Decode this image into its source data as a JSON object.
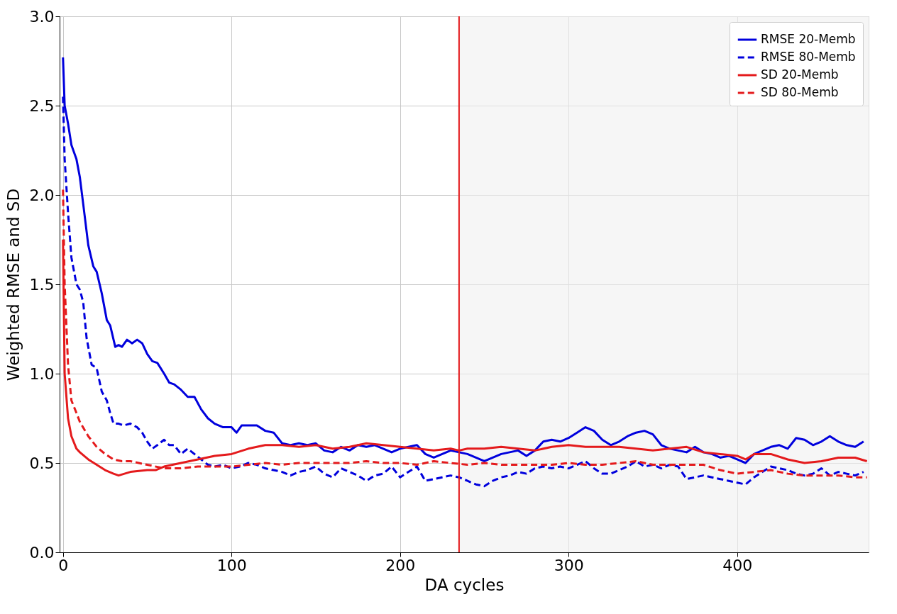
{
  "chart_data": {
    "type": "line",
    "xlabel": "DA cycles",
    "ylabel": "Weighted RMSE and SD",
    "xlim": [
      -2,
      478
    ],
    "ylim": [
      0,
      3
    ],
    "xticks": [
      0,
      100,
      200,
      300,
      400
    ],
    "yticks": [
      {
        "value": 0,
        "label": "0.0"
      },
      {
        "value": 0.5,
        "label": "0.5"
      },
      {
        "value": 1,
        "label": "1.0"
      },
      {
        "value": 1.5,
        "label": "1.5"
      },
      {
        "value": 2,
        "label": "2.0"
      },
      {
        "value": 2.5,
        "label": "2.5"
      },
      {
        "value": 3,
        "label": "3.0"
      }
    ],
    "grid": true,
    "legend": "top right",
    "marker": "none",
    "ref_lines": [
      {
        "axis": "x",
        "value": 235,
        "color": "#e41a1c"
      }
    ],
    "bands": [
      {
        "axis": "x",
        "from": 235,
        "to": 478,
        "color": "#f0f0f0"
      }
    ],
    "series": [
      {
        "name": "RMSE 20-Memb",
        "color": "#0000dd",
        "line_style": "solid",
        "x": [
          0,
          1,
          3,
          5,
          8,
          10,
          12,
          15,
          18,
          20,
          23,
          26,
          28,
          31,
          33,
          35,
          38,
          41,
          44,
          47,
          50,
          53,
          56,
          60,
          63,
          66,
          70,
          74,
          78,
          82,
          86,
          90,
          95,
          100,
          103,
          106,
          110,
          115,
          120,
          125,
          130,
          135,
          140,
          145,
          150,
          155,
          160,
          165,
          170,
          175,
          180,
          185,
          190,
          195,
          200,
          205,
          210,
          215,
          220,
          225,
          230,
          235,
          240,
          245,
          250,
          255,
          260,
          265,
          270,
          275,
          280,
          285,
          290,
          295,
          300,
          305,
          310,
          315,
          320,
          325,
          330,
          335,
          340,
          345,
          350,
          355,
          360,
          365,
          370,
          375,
          380,
          385,
          390,
          395,
          400,
          405,
          410,
          415,
          420,
          425,
          430,
          435,
          440,
          445,
          450,
          455,
          460,
          465,
          470,
          475
        ],
        "values": [
          2.77,
          2.5,
          2.4,
          2.28,
          2.2,
          2.1,
          1.95,
          1.72,
          1.6,
          1.57,
          1.45,
          1.3,
          1.27,
          1.15,
          1.16,
          1.15,
          1.19,
          1.17,
          1.19,
          1.17,
          1.11,
          1.07,
          1.06,
          1.0,
          0.95,
          0.94,
          0.91,
          0.87,
          0.87,
          0.8,
          0.75,
          0.72,
          0.7,
          0.7,
          0.67,
          0.71,
          0.71,
          0.71,
          0.68,
          0.67,
          0.61,
          0.6,
          0.61,
          0.6,
          0.61,
          0.57,
          0.56,
          0.59,
          0.57,
          0.6,
          0.59,
          0.6,
          0.58,
          0.56,
          0.58,
          0.59,
          0.6,
          0.55,
          0.53,
          0.55,
          0.57,
          0.56,
          0.55,
          0.53,
          0.51,
          0.53,
          0.55,
          0.56,
          0.57,
          0.54,
          0.57,
          0.62,
          0.63,
          0.62,
          0.64,
          0.67,
          0.7,
          0.68,
          0.63,
          0.6,
          0.62,
          0.65,
          0.67,
          0.68,
          0.66,
          0.6,
          0.58,
          0.57,
          0.56,
          0.59,
          0.56,
          0.55,
          0.53,
          0.54,
          0.52,
          0.5,
          0.55,
          0.57,
          0.59,
          0.6,
          0.58,
          0.64,
          0.63,
          0.6,
          0.62,
          0.65,
          0.62,
          0.6,
          0.59,
          0.62
        ]
      },
      {
        "name": "RMSE 80-Memb",
        "color": "#0000dd",
        "line_style": "dashed",
        "x": [
          0,
          1,
          3,
          5,
          8,
          10,
          12,
          14,
          17,
          20,
          23,
          26,
          28,
          30,
          33,
          36,
          40,
          44,
          47,
          50,
          53,
          56,
          60,
          63,
          66,
          70,
          74,
          78,
          82,
          86,
          90,
          95,
          100,
          105,
          110,
          115,
          120,
          125,
          130,
          135,
          140,
          145,
          150,
          155,
          160,
          165,
          170,
          175,
          180,
          185,
          190,
          195,
          200,
          205,
          210,
          215,
          220,
          225,
          230,
          235,
          240,
          245,
          250,
          255,
          260,
          265,
          270,
          275,
          280,
          285,
          290,
          295,
          300,
          305,
          310,
          315,
          320,
          325,
          330,
          335,
          340,
          345,
          350,
          355,
          360,
          365,
          370,
          375,
          380,
          385,
          390,
          395,
          400,
          405,
          410,
          415,
          420,
          425,
          430,
          435,
          440,
          445,
          450,
          455,
          460,
          465,
          470,
          475
        ],
        "values": [
          2.55,
          2.2,
          1.9,
          1.65,
          1.5,
          1.47,
          1.4,
          1.2,
          1.05,
          1.03,
          0.9,
          0.85,
          0.78,
          0.72,
          0.72,
          0.71,
          0.72,
          0.7,
          0.67,
          0.62,
          0.58,
          0.6,
          0.63,
          0.6,
          0.6,
          0.55,
          0.58,
          0.55,
          0.52,
          0.49,
          0.48,
          0.49,
          0.47,
          0.48,
          0.5,
          0.49,
          0.47,
          0.46,
          0.45,
          0.43,
          0.45,
          0.46,
          0.48,
          0.44,
          0.42,
          0.47,
          0.45,
          0.43,
          0.4,
          0.43,
          0.44,
          0.48,
          0.42,
          0.45,
          0.48,
          0.4,
          0.41,
          0.42,
          0.43,
          0.42,
          0.4,
          0.38,
          0.37,
          0.4,
          0.42,
          0.43,
          0.45,
          0.44,
          0.47,
          0.48,
          0.47,
          0.48,
          0.47,
          0.49,
          0.51,
          0.47,
          0.44,
          0.44,
          0.46,
          0.48,
          0.51,
          0.48,
          0.49,
          0.47,
          0.49,
          0.48,
          0.41,
          0.42,
          0.43,
          0.42,
          0.41,
          0.4,
          0.39,
          0.38,
          0.42,
          0.45,
          0.48,
          0.47,
          0.46,
          0.44,
          0.43,
          0.44,
          0.47,
          0.43,
          0.45,
          0.44,
          0.43,
          0.45
        ]
      },
      {
        "name": "SD 20-Memb",
        "color": "#e41a1c",
        "line_style": "solid",
        "x": [
          0,
          1,
          3,
          5,
          8,
          10,
          15,
          20,
          25,
          30,
          33,
          40,
          50,
          55,
          60,
          70,
          80,
          90,
          100,
          110,
          120,
          130,
          140,
          150,
          160,
          170,
          180,
          190,
          200,
          210,
          220,
          230,
          235,
          240,
          250,
          260,
          270,
          280,
          290,
          300,
          310,
          320,
          330,
          340,
          350,
          360,
          370,
          380,
          390,
          400,
          405,
          410,
          420,
          430,
          440,
          450,
          460,
          470,
          477
        ],
        "values": [
          1.75,
          1.0,
          0.75,
          0.65,
          0.58,
          0.56,
          0.52,
          0.49,
          0.46,
          0.44,
          0.43,
          0.45,
          0.46,
          0.46,
          0.48,
          0.5,
          0.52,
          0.54,
          0.55,
          0.58,
          0.6,
          0.6,
          0.59,
          0.6,
          0.58,
          0.59,
          0.61,
          0.6,
          0.59,
          0.58,
          0.57,
          0.58,
          0.57,
          0.58,
          0.58,
          0.59,
          0.58,
          0.57,
          0.59,
          0.6,
          0.59,
          0.59,
          0.59,
          0.58,
          0.57,
          0.58,
          0.59,
          0.56,
          0.55,
          0.54,
          0.52,
          0.55,
          0.55,
          0.52,
          0.5,
          0.51,
          0.53,
          0.53,
          0.51
        ]
      },
      {
        "name": "SD 80-Memb",
        "color": "#e41a1c",
        "line_style": "dashed",
        "x": [
          0,
          1,
          3,
          5,
          8,
          10,
          15,
          20,
          25,
          30,
          35,
          40,
          50,
          60,
          70,
          80,
          90,
          100,
          110,
          120,
          130,
          140,
          150,
          160,
          170,
          180,
          190,
          200,
          210,
          220,
          230,
          240,
          250,
          260,
          270,
          280,
          290,
          300,
          310,
          320,
          330,
          340,
          350,
          360,
          370,
          380,
          390,
          400,
          410,
          420,
          430,
          440,
          450,
          460,
          470,
          477
        ],
        "values": [
          2.03,
          1.5,
          1.05,
          0.85,
          0.78,
          0.73,
          0.65,
          0.59,
          0.55,
          0.52,
          0.51,
          0.51,
          0.49,
          0.47,
          0.47,
          0.48,
          0.48,
          0.48,
          0.49,
          0.5,
          0.49,
          0.5,
          0.5,
          0.5,
          0.5,
          0.51,
          0.5,
          0.5,
          0.49,
          0.51,
          0.5,
          0.49,
          0.5,
          0.49,
          0.49,
          0.49,
          0.49,
          0.5,
          0.49,
          0.49,
          0.5,
          0.51,
          0.49,
          0.49,
          0.49,
          0.49,
          0.46,
          0.44,
          0.45,
          0.46,
          0.44,
          0.43,
          0.43,
          0.43,
          0.42,
          0.42
        ]
      }
    ]
  }
}
